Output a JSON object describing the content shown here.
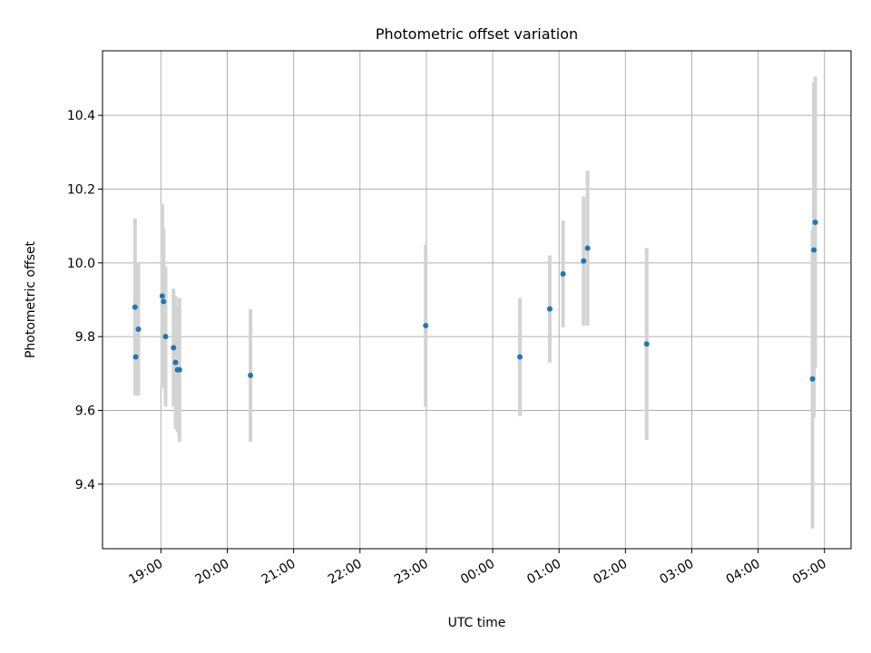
{
  "chart_data": {
    "type": "scatter",
    "title": "Photometric offset variation",
    "xlabel": "UTC time",
    "ylabel": "Photometric offset",
    "x_unit": "hours",
    "xlim": [
      18.12,
      29.4
    ],
    "ylim": [
      9.225,
      10.575
    ],
    "xticks": [
      {
        "value": 19,
        "label": "19:00"
      },
      {
        "value": 20,
        "label": "20:00"
      },
      {
        "value": 21,
        "label": "21:00"
      },
      {
        "value": 22,
        "label": "22:00"
      },
      {
        "value": 23,
        "label": "23:00"
      },
      {
        "value": 24,
        "label": "00:00"
      },
      {
        "value": 25,
        "label": "01:00"
      },
      {
        "value": 26,
        "label": "02:00"
      },
      {
        "value": 27,
        "label": "03:00"
      },
      {
        "value": 28,
        "label": "04:00"
      },
      {
        "value": 29,
        "label": "05:00"
      }
    ],
    "yticks": [
      {
        "value": 9.4,
        "label": "9.4"
      },
      {
        "value": 9.6,
        "label": "9.6"
      },
      {
        "value": 9.8,
        "label": "9.8"
      },
      {
        "value": 10.0,
        "label": "10.0"
      },
      {
        "value": 10.2,
        "label": "10.2"
      },
      {
        "value": 10.4,
        "label": "10.4"
      }
    ],
    "grid": true,
    "colors": {
      "marker": "#1f77b4",
      "errorbar": "#d3d3d3",
      "grid": "#b0b0b0"
    },
    "points": [
      {
        "x": 18.61,
        "y": 9.88,
        "err": 0.24
      },
      {
        "x": 18.62,
        "y": 9.745,
        "err": 0.1
      },
      {
        "x": 18.66,
        "y": 9.82,
        "err": 0.18
      },
      {
        "x": 19.02,
        "y": 9.91,
        "err": 0.25
      },
      {
        "x": 19.04,
        "y": 9.895,
        "err": 0.2
      },
      {
        "x": 19.07,
        "y": 9.8,
        "err": 0.19
      },
      {
        "x": 19.19,
        "y": 9.77,
        "err": 0.16
      },
      {
        "x": 19.22,
        "y": 9.73,
        "err": 0.18
      },
      {
        "x": 19.25,
        "y": 9.71,
        "err": 0.17
      },
      {
        "x": 19.28,
        "y": 9.71,
        "err": 0.195
      },
      {
        "x": 20.35,
        "y": 9.695,
        "err": 0.18
      },
      {
        "x": 22.99,
        "y": 9.83,
        "err": 0.22
      },
      {
        "x": 24.41,
        "y": 9.745,
        "err": 0.16
      },
      {
        "x": 24.86,
        "y": 9.875,
        "err": 0.145
      },
      {
        "x": 25.06,
        "y": 9.97,
        "err": 0.145
      },
      {
        "x": 25.37,
        "y": 10.005,
        "err": 0.175
      },
      {
        "x": 25.43,
        "y": 10.04,
        "err": 0.21
      },
      {
        "x": 26.32,
        "y": 9.78,
        "err": 0.26
      },
      {
        "x": 28.82,
        "y": 9.685,
        "err": 0.405
      },
      {
        "x": 28.84,
        "y": 10.035,
        "err": 0.455
      },
      {
        "x": 28.86,
        "y": 10.11,
        "err": 0.395
      }
    ]
  }
}
